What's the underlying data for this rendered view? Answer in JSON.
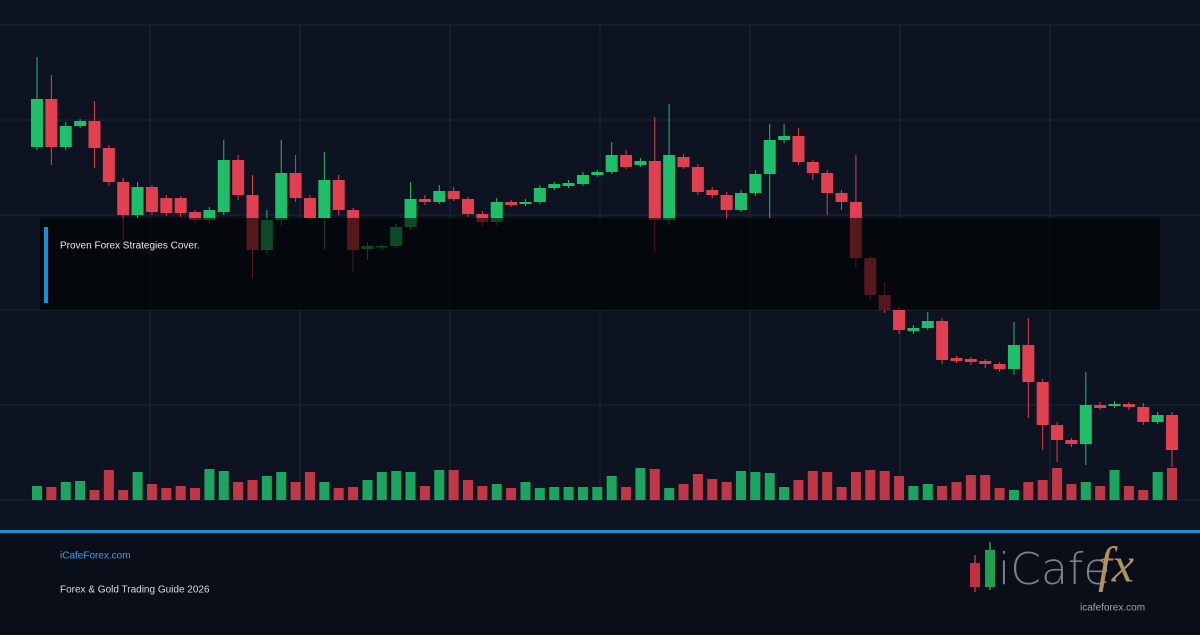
{
  "chart_data": {
    "type": "candlestick",
    "up_color": "#1fbf6a",
    "down_color": "#e0404f",
    "ylim": [
      0,
      475
    ],
    "vlim": [
      0,
      100
    ],
    "open": [
      353,
      401,
      353,
      374,
      379,
      352,
      318,
      285,
      313,
      302,
      302,
      288,
      280,
      288,
      340,
      305,
      250,
      280,
      327,
      302,
      282,
      320,
      290,
      251,
      253,
      254,
      273,
      301,
      298,
      309,
      301,
      286,
      278,
      298,
      296,
      298,
      312,
      314,
      316,
      325,
      328,
      345,
      335,
      339,
      280,
      343,
      333,
      310,
      305,
      290,
      307,
      326,
      360,
      364,
      338,
      327,
      307,
      298,
      242,
      205,
      190,
      169,
      172,
      179,
      142,
      141,
      139,
      136,
      131,
      155,
      118,
      75,
      60,
      56,
      95,
      94,
      96,
      93,
      78,
      85
    ],
    "high": [
      443,
      425,
      378,
      381,
      399,
      355,
      322,
      318,
      315,
      305,
      304,
      290,
      293,
      360,
      345,
      325,
      290,
      360,
      345,
      305,
      348,
      325,
      292,
      258,
      256,
      276,
      318,
      305,
      315,
      313,
      303,
      289,
      302,
      300,
      301,
      315,
      318,
      320,
      328,
      330,
      358,
      350,
      342,
      383,
      396,
      346,
      336,
      313,
      308,
      310,
      330,
      376,
      376,
      372,
      340,
      330,
      310,
      345,
      245,
      218,
      193,
      175,
      188,
      182,
      144,
      143,
      141,
      138,
      178,
      182,
      121,
      78,
      62,
      128,
      98,
      99,
      98,
      97,
      88,
      88
    ],
    "low": [
      350,
      335,
      350,
      372,
      332,
      314,
      260,
      282,
      285,
      284,
      283,
      277,
      277,
      285,
      300,
      222,
      245,
      275,
      298,
      280,
      250,
      285,
      228,
      240,
      250,
      252,
      270,
      295,
      296,
      299,
      283,
      274,
      275,
      293,
      294,
      296,
      310,
      312,
      314,
      323,
      326,
      331,
      333,
      247,
      275,
      331,
      305,
      302,
      280,
      288,
      304,
      282,
      357,
      335,
      320,
      285,
      290,
      232,
      200,
      187,
      166,
      166,
      170,
      136,
      137,
      135,
      132,
      128,
      125,
      82,
      50,
      38,
      53,
      35,
      90,
      92,
      90,
      75,
      76,
      33
    ],
    "close": [
      401,
      353,
      374,
      379,
      352,
      318,
      285,
      313,
      288,
      287,
      287,
      280,
      290,
      340,
      305,
      250,
      280,
      327,
      302,
      282,
      320,
      290,
      250,
      254,
      254,
      273,
      301,
      298,
      309,
      301,
      286,
      278,
      298,
      295,
      298,
      312,
      316,
      317,
      325,
      328,
      345,
      333,
      339,
      280,
      345,
      333,
      308,
      305,
      290,
      307,
      326,
      360,
      364,
      338,
      327,
      307,
      298,
      242,
      205,
      190,
      170,
      172,
      179,
      140,
      139,
      138,
      136,
      131,
      155,
      118,
      75,
      60,
      56,
      95,
      92,
      96,
      93,
      78,
      85,
      50
    ],
    "volume": [
      14,
      13,
      18,
      19,
      10,
      30,
      10,
      28,
      16,
      12,
      14,
      12,
      31,
      29,
      18,
      20,
      24,
      28,
      18,
      28,
      18,
      12,
      13,
      20,
      28,
      29,
      28,
      14,
      30,
      30,
      20,
      14,
      16,
      12,
      18,
      12,
      13,
      13,
      13,
      13,
      24,
      13,
      32,
      31,
      12,
      16,
      26,
      21,
      18,
      29,
      28,
      27,
      13,
      20,
      29,
      28,
      13,
      28,
      30,
      29,
      24,
      14,
      16,
      14,
      18,
      25,
      25,
      12,
      10,
      18,
      20,
      32,
      16,
      18,
      14,
      30,
      14,
      10,
      28,
      32
    ],
    "annotation": "Proven Forex Strategies Cover."
  },
  "footer": {
    "site": "iCafeForex.com",
    "tagline": "Forex & Gold Trading Guide 2026"
  },
  "logo": {
    "text": "iCafe",
    "accent": "fx",
    "url": "icafeforex.com"
  }
}
